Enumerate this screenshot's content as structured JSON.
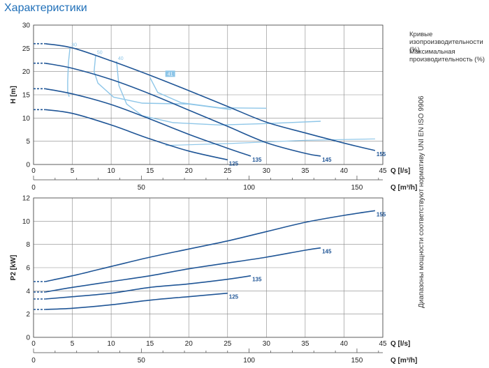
{
  "page": {
    "title": "Характеристики"
  },
  "legend": {
    "iso_efficiency": "Кривые изопроизводительности (%)",
    "max_efficiency": "Максимальная производительность (%)"
  },
  "side_note": "Диапазоны мощности соответствуют нормативу UNI EN ISO 9906",
  "colors": {
    "curve": "#1f5596",
    "iso": "#8ec6e8",
    "grid": "#888888",
    "title": "#1f6fb8"
  },
  "chart_data": [
    {
      "type": "line",
      "title": "",
      "ylabel": "H [m]",
      "xlabel": "Q [l/s]",
      "x2label": "Q [m³/h]",
      "xlim": [
        0,
        45
      ],
      "ylim": [
        0,
        30
      ],
      "xticks": [
        0,
        5,
        10,
        15,
        20,
        25,
        30,
        35,
        40,
        45
      ],
      "yticks": [
        0,
        5,
        10,
        15,
        20,
        25,
        30
      ],
      "x2ticks": [
        0,
        50,
        100,
        150
      ],
      "x2_factor": 3.6,
      "grid": true,
      "series": [
        {
          "name": "155",
          "x": [
            1.5,
            5,
            10,
            15,
            20,
            25,
            30,
            35,
            40,
            44
          ],
          "y": [
            26,
            25.1,
            22.3,
            19.2,
            15.9,
            12.5,
            9.1,
            6.8,
            4.6,
            3
          ]
        },
        {
          "name": "145",
          "x": [
            1.5,
            5,
            10,
            15,
            20,
            25,
            30,
            35,
            37
          ],
          "y": [
            21.8,
            20.7,
            18.3,
            15.2,
            11.7,
            8.2,
            4.7,
            2.4,
            1.8
          ]
        },
        {
          "name": "135",
          "x": [
            1.5,
            5,
            10,
            15,
            20,
            25,
            28
          ],
          "y": [
            16.3,
            15.2,
            12.9,
            9.8,
            6.5,
            3.5,
            1.8
          ]
        },
        {
          "name": "125",
          "x": [
            1.5,
            5,
            10,
            15,
            20,
            25
          ],
          "y": [
            11.8,
            11,
            8.5,
            5.5,
            2.9,
            1
          ]
        }
      ],
      "iso_curves": [
        {
          "label": "30",
          "x": [
            4.7,
            4.5,
            4.4,
            4.4,
            4.6
          ],
          "y": [
            25.1,
            22,
            18,
            15.5,
            14.6
          ]
        },
        {
          "label": "50",
          "x": [
            8,
            7.8,
            8.3,
            10.3,
            14,
            20,
            25.5
          ],
          "y": [
            23.5,
            20,
            17.5,
            14.5,
            13.2,
            13,
            11.8
          ]
        },
        {
          "label": "40",
          "x": [
            10.7,
            11,
            12,
            14,
            18,
            24,
            30,
            37
          ],
          "y": [
            22.2,
            17,
            13,
            10.5,
            9,
            8.5,
            8.8,
            9.3
          ]
        },
        {
          "label": "41",
          "x": [
            15,
            16,
            19,
            24,
            30
          ],
          "y": [
            18.7,
            15.5,
            13.3,
            12.2,
            12.1
          ]
        }
      ],
      "max_eff_line": {
        "x": [
          17,
          25,
          35,
          44
        ],
        "y": [
          4.1,
          4.5,
          5.2,
          5.5
        ]
      }
    },
    {
      "type": "line",
      "title": "",
      "ylabel": "P2 [kW]",
      "xlabel": "Q [l/s]",
      "x2label": "Q [m³/h]",
      "xlim": [
        0,
        45
      ],
      "ylim": [
        0,
        12
      ],
      "xticks": [
        0,
        5,
        10,
        15,
        20,
        25,
        30,
        35,
        40,
        45
      ],
      "yticks": [
        0,
        2,
        4,
        6,
        8,
        10,
        12
      ],
      "x2ticks": [
        0,
        50,
        100,
        150
      ],
      "x2_factor": 3.6,
      "grid": true,
      "series": [
        {
          "name": "155",
          "x": [
            1.5,
            5,
            10,
            15,
            20,
            25,
            30,
            35,
            40,
            44
          ],
          "y": [
            4.8,
            5.3,
            6.1,
            6.9,
            7.6,
            8.3,
            9.1,
            9.9,
            10.5,
            10.9
          ]
        },
        {
          "name": "145",
          "x": [
            1.5,
            5,
            10,
            15,
            20,
            25,
            30,
            35,
            37
          ],
          "y": [
            3.9,
            4.3,
            4.8,
            5.3,
            5.9,
            6.4,
            6.9,
            7.5,
            7.7
          ]
        },
        {
          "name": "135",
          "x": [
            1.5,
            5,
            10,
            15,
            20,
            25,
            28
          ],
          "y": [
            3.3,
            3.5,
            3.8,
            4.3,
            4.6,
            5.0,
            5.3
          ]
        },
        {
          "name": "125",
          "x": [
            1.5,
            5,
            10,
            15,
            20,
            25
          ],
          "y": [
            2.4,
            2.5,
            2.8,
            3.2,
            3.5,
            3.8
          ]
        }
      ]
    }
  ]
}
